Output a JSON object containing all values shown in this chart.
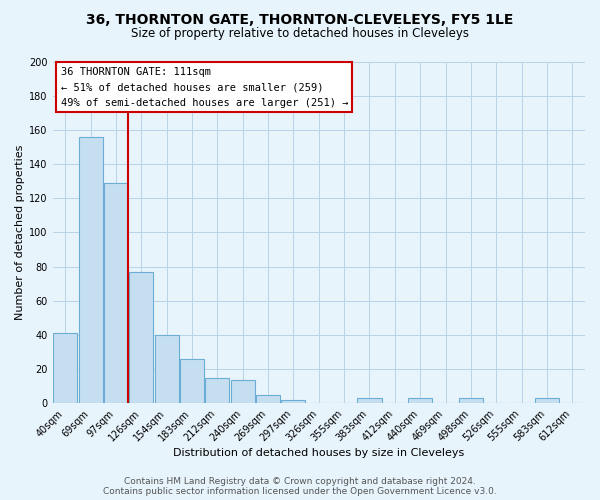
{
  "title": "36, THORNTON GATE, THORNTON-CLEVELEYS, FY5 1LE",
  "subtitle": "Size of property relative to detached houses in Cleveleys",
  "xlabel": "Distribution of detached houses by size in Cleveleys",
  "ylabel": "Number of detached properties",
  "bar_labels": [
    "40sqm",
    "69sqm",
    "97sqm",
    "126sqm",
    "154sqm",
    "183sqm",
    "212sqm",
    "240sqm",
    "269sqm",
    "297sqm",
    "326sqm",
    "355sqm",
    "383sqm",
    "412sqm",
    "440sqm",
    "469sqm",
    "498sqm",
    "526sqm",
    "555sqm",
    "583sqm",
    "612sqm"
  ],
  "bar_heights": [
    41,
    156,
    129,
    77,
    40,
    26,
    15,
    14,
    5,
    2,
    0,
    0,
    3,
    0,
    3,
    0,
    3,
    0,
    0,
    3,
    0
  ],
  "bar_color": "#c5dff0",
  "bar_edge_color": "#6aaed6",
  "vline_bar_index": 2.86,
  "vline_color": "#cc0000",
  "ylim": [
    0,
    200
  ],
  "yticks": [
    0,
    20,
    40,
    60,
    80,
    100,
    120,
    140,
    160,
    180,
    200
  ],
  "annotation_title": "36 THORNTON GATE: 111sqm",
  "annotation_line1": "← 51% of detached houses are smaller (259)",
  "annotation_line2": "49% of semi-detached houses are larger (251) →",
  "annotation_box_color": "#ffffff",
  "annotation_box_edge": "#cc0000",
  "footer1": "Contains HM Land Registry data © Crown copyright and database right 2024.",
  "footer2": "Contains public sector information licensed under the Open Government Licence v3.0.",
  "bg_color": "#e8f4fb",
  "grid_color": "#b8d4e8",
  "title_fontsize": 10,
  "subtitle_fontsize": 8.5,
  "axis_label_fontsize": 8,
  "tick_fontsize": 7,
  "footer_fontsize": 6.5
}
